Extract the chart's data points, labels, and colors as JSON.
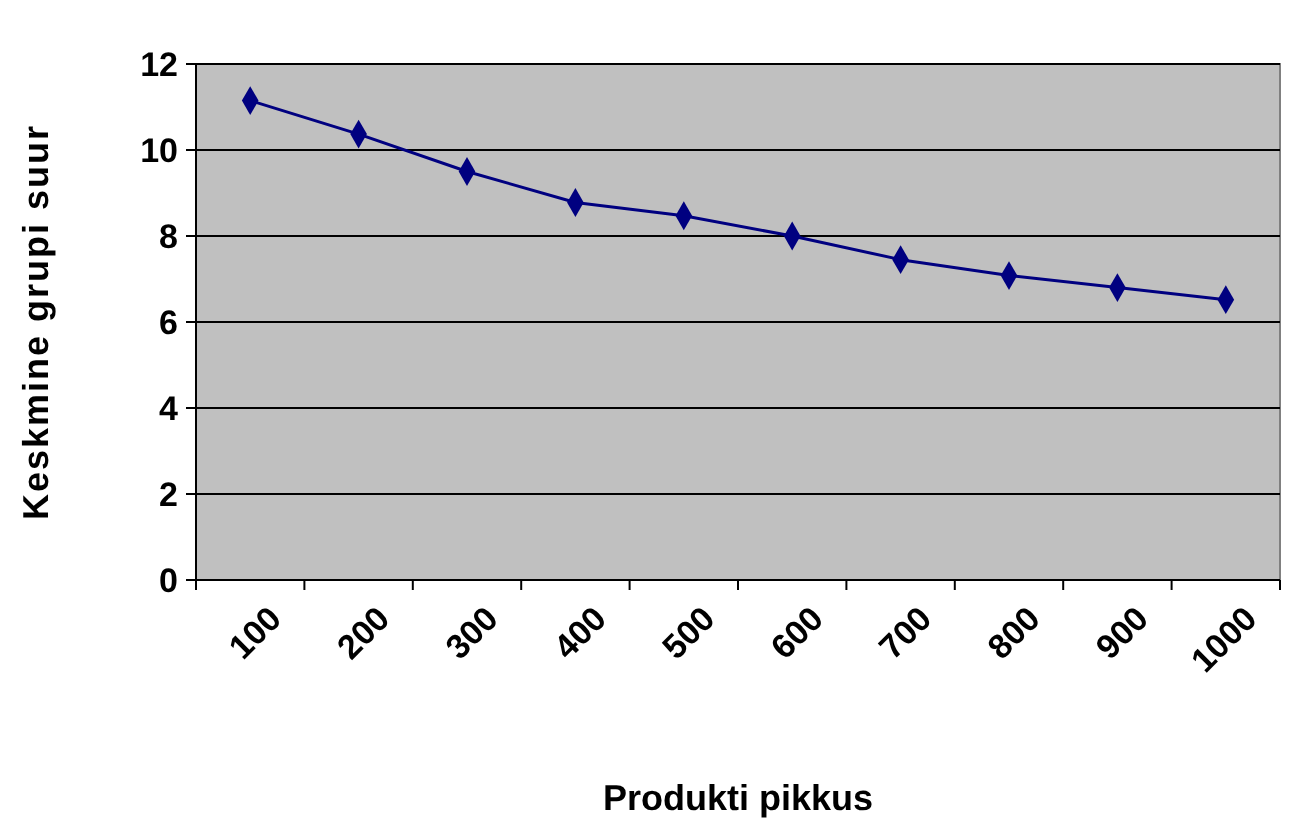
{
  "chart_data": {
    "type": "line",
    "xlabel": "Produkti pikkus",
    "ylabel": "Keskmine grupi suur",
    "categories": [
      "100",
      "200",
      "300",
      "400",
      "500",
      "600",
      "700",
      "800",
      "900",
      "1000"
    ],
    "series": [
      {
        "color": "#000080",
        "values": [
          11.15,
          10.37,
          9.5,
          8.78,
          8.47,
          8.0,
          7.45,
          7.08,
          6.8,
          6.52
        ]
      }
    ],
    "ylim": [
      0,
      12
    ],
    "yticks": [
      0,
      2,
      4,
      6,
      8,
      10,
      12
    ],
    "grid": "y",
    "marker": "diamond",
    "line_style": "solid"
  }
}
